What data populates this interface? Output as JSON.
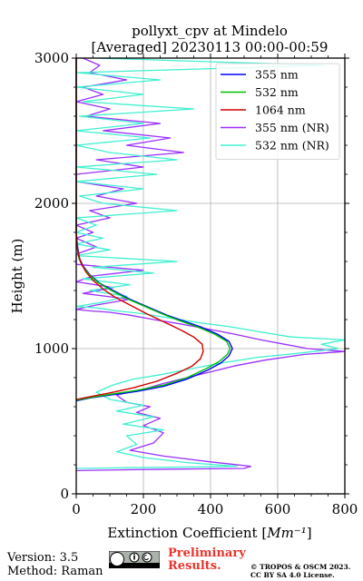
{
  "chart_data": {
    "type": "line",
    "title": "pollyxt_cpv at Mindelo",
    "subtitle": "[Averaged] 20230113 00:00-00:59",
    "xlabel": "Extinction Coefficient [Mm⁻¹]",
    "ylabel": "Height (m)",
    "xlim": [
      0,
      800
    ],
    "ylim": [
      0,
      3000
    ],
    "x_ticks": [
      "0",
      "200",
      "400",
      "600",
      "800"
    ],
    "y_ticks": [
      "0",
      "1000",
      "2000",
      "3000"
    ],
    "x_tick_values": [
      0,
      200,
      400,
      600,
      800
    ],
    "y_tick_values": [
      0,
      1000,
      2000,
      3000
    ],
    "grid": true,
    "legend_position": "top-right",
    "series": [
      {
        "name": "355 nm",
        "color": "#0000ff",
        "points": [
          [
            0,
            640
          ],
          [
            40,
            660
          ],
          [
            100,
            680
          ],
          [
            180,
            705
          ],
          [
            260,
            740
          ],
          [
            330,
            790
          ],
          [
            390,
            850
          ],
          [
            430,
            900
          ],
          [
            455,
            950
          ],
          [
            465,
            1000
          ],
          [
            455,
            1050
          ],
          [
            420,
            1100
          ],
          [
            370,
            1150
          ],
          [
            320,
            1190
          ],
          [
            270,
            1230
          ],
          [
            210,
            1290
          ],
          [
            160,
            1340
          ],
          [
            110,
            1400
          ],
          [
            70,
            1450
          ],
          [
            40,
            1510
          ],
          [
            20,
            1570
          ],
          [
            10,
            1620
          ],
          [
            4,
            1700
          ],
          [
            0,
            1800
          ],
          [
            0,
            3000
          ]
        ]
      },
      {
        "name": "532 nm",
        "color": "#00c000",
        "points": [
          [
            0,
            645
          ],
          [
            40,
            662
          ],
          [
            100,
            685
          ],
          [
            180,
            712
          ],
          [
            260,
            748
          ],
          [
            330,
            800
          ],
          [
            385,
            860
          ],
          [
            425,
            910
          ],
          [
            450,
            960
          ],
          [
            458,
            1000
          ],
          [
            448,
            1050
          ],
          [
            412,
            1100
          ],
          [
            360,
            1150
          ],
          [
            305,
            1195
          ],
          [
            255,
            1240
          ],
          [
            200,
            1295
          ],
          [
            150,
            1345
          ],
          [
            105,
            1400
          ],
          [
            65,
            1455
          ],
          [
            38,
            1510
          ],
          [
            18,
            1570
          ],
          [
            8,
            1620
          ],
          [
            3,
            1700
          ],
          [
            0,
            1800
          ],
          [
            0,
            3000
          ]
        ]
      },
      {
        "name": "1064 nm",
        "color": "#d40000",
        "points": [
          [
            0,
            650
          ],
          [
            40,
            668
          ],
          [
            100,
            695
          ],
          [
            170,
            730
          ],
          [
            240,
            775
          ],
          [
            300,
            830
          ],
          [
            345,
            880
          ],
          [
            370,
            930
          ],
          [
            378,
            980
          ],
          [
            375,
            1030
          ],
          [
            350,
            1080
          ],
          [
            310,
            1130
          ],
          [
            260,
            1185
          ],
          [
            210,
            1240
          ],
          [
            160,
            1300
          ],
          [
            115,
            1355
          ],
          [
            80,
            1410
          ],
          [
            50,
            1470
          ],
          [
            28,
            1530
          ],
          [
            14,
            1590
          ],
          [
            6,
            1650
          ],
          [
            2,
            1720
          ],
          [
            0,
            1800
          ],
          [
            0,
            3000
          ]
        ]
      },
      {
        "name": "355 nm (NR)",
        "color": "#9b30ff",
        "points": [
          [
            0,
            160
          ],
          [
            120,
            165
          ],
          [
            280,
            170
          ],
          [
            500,
            175
          ],
          [
            520,
            190
          ],
          [
            400,
            220
          ],
          [
            260,
            260
          ],
          [
            160,
            300
          ],
          [
            230,
            350
          ],
          [
            260,
            420
          ],
          [
            200,
            470
          ],
          [
            250,
            520
          ],
          [
            180,
            560
          ],
          [
            220,
            600
          ],
          [
            150,
            630
          ],
          [
            120,
            680
          ],
          [
            200,
            720
          ],
          [
            260,
            760
          ],
          [
            330,
            800
          ],
          [
            400,
            840
          ],
          [
            470,
            880
          ],
          [
            560,
            920
          ],
          [
            680,
            960
          ],
          [
            800,
            980
          ],
          [
            690,
            1000
          ],
          [
            620,
            1030
          ],
          [
            550,
            1060
          ],
          [
            470,
            1100
          ],
          [
            380,
            1140
          ],
          [
            310,
            1170
          ],
          [
            230,
            1200
          ],
          [
            160,
            1230
          ],
          [
            100,
            1250
          ],
          [
            40,
            1260
          ],
          [
            0,
            1270
          ],
          [
            60,
            1300
          ],
          [
            160,
            1340
          ],
          [
            20,
            1380
          ],
          [
            110,
            1420
          ],
          [
            0,
            1460
          ],
          [
            50,
            1500
          ],
          [
            200,
            1540
          ],
          [
            0,
            1580
          ],
          [
            0,
            1650
          ],
          [
            60,
            1700
          ],
          [
            0,
            1760
          ],
          [
            50,
            1800
          ],
          [
            0,
            1850
          ],
          [
            100,
            1900
          ],
          [
            40,
            1950
          ],
          [
            180,
            2000
          ],
          [
            60,
            2050
          ],
          [
            140,
            2100
          ],
          [
            0,
            2150
          ],
          [
            0,
            2200
          ],
          [
            200,
            2250
          ],
          [
            60,
            2300
          ],
          [
            320,
            2350
          ],
          [
            150,
            2400
          ],
          [
            280,
            2450
          ],
          [
            80,
            2500
          ],
          [
            250,
            2550
          ],
          [
            30,
            2600
          ],
          [
            100,
            2650
          ],
          [
            0,
            2700
          ],
          [
            80,
            2750
          ],
          [
            20,
            2800
          ],
          [
            150,
            2850
          ],
          [
            40,
            2900
          ],
          [
            70,
            2950
          ],
          [
            20,
            3000
          ]
        ]
      },
      {
        "name": "532 nm (NR)",
        "color": "#40f0d0",
        "points": [
          [
            0,
            175
          ],
          [
            150,
            180
          ],
          [
            350,
            185
          ],
          [
            480,
            190
          ],
          [
            330,
            215
          ],
          [
            200,
            250
          ],
          [
            120,
            290
          ],
          [
            180,
            340
          ],
          [
            150,
            400
          ],
          [
            260,
            440
          ],
          [
            140,
            480
          ],
          [
            230,
            530
          ],
          [
            120,
            570
          ],
          [
            200,
            610
          ],
          [
            100,
            650
          ],
          [
            60,
            700
          ],
          [
            110,
            750
          ],
          [
            170,
            790
          ],
          [
            250,
            820
          ],
          [
            340,
            860
          ],
          [
            430,
            900
          ],
          [
            540,
            940
          ],
          [
            670,
            970
          ],
          [
            780,
            1000
          ],
          [
            730,
            1030
          ],
          [
            800,
            1060
          ],
          [
            640,
            1080
          ],
          [
            560,
            1110
          ],
          [
            460,
            1150
          ],
          [
            360,
            1180
          ],
          [
            280,
            1210
          ],
          [
            200,
            1240
          ],
          [
            120,
            1260
          ],
          [
            60,
            1280
          ],
          [
            0,
            1290
          ],
          [
            80,
            1320
          ],
          [
            150,
            1360
          ],
          [
            40,
            1400
          ],
          [
            160,
            1440
          ],
          [
            20,
            1480
          ],
          [
            230,
            1520
          ],
          [
            50,
            1560
          ],
          [
            300,
            1600
          ],
          [
            0,
            1640
          ],
          [
            100,
            1680
          ],
          [
            0,
            1720
          ],
          [
            80,
            1760
          ],
          [
            0,
            1800
          ],
          [
            60,
            1850
          ],
          [
            0,
            1900
          ],
          [
            300,
            1950
          ],
          [
            80,
            2000
          ],
          [
            10,
            2050
          ],
          [
            200,
            2100
          ],
          [
            0,
            2150
          ],
          [
            240,
            2200
          ],
          [
            0,
            2250
          ],
          [
            300,
            2300
          ],
          [
            100,
            2350
          ],
          [
            0,
            2400
          ],
          [
            220,
            2450
          ],
          [
            0,
            2500
          ],
          [
            200,
            2550
          ],
          [
            10,
            2600
          ],
          [
            350,
            2650
          ],
          [
            20,
            2700
          ],
          [
            200,
            2750
          ],
          [
            0,
            2800
          ],
          [
            250,
            2850
          ],
          [
            0,
            2900
          ],
          [
            740,
            2950
          ],
          [
            60,
            3000
          ]
        ]
      }
    ]
  },
  "footer": {
    "version": "Version: 3.5",
    "method": "Method: Raman",
    "preliminary": [
      "Preliminary",
      "Results."
    ],
    "copyright": [
      "© TROPOS & OSCM 2023.",
      "CC BY SA 4.0 License."
    ]
  }
}
